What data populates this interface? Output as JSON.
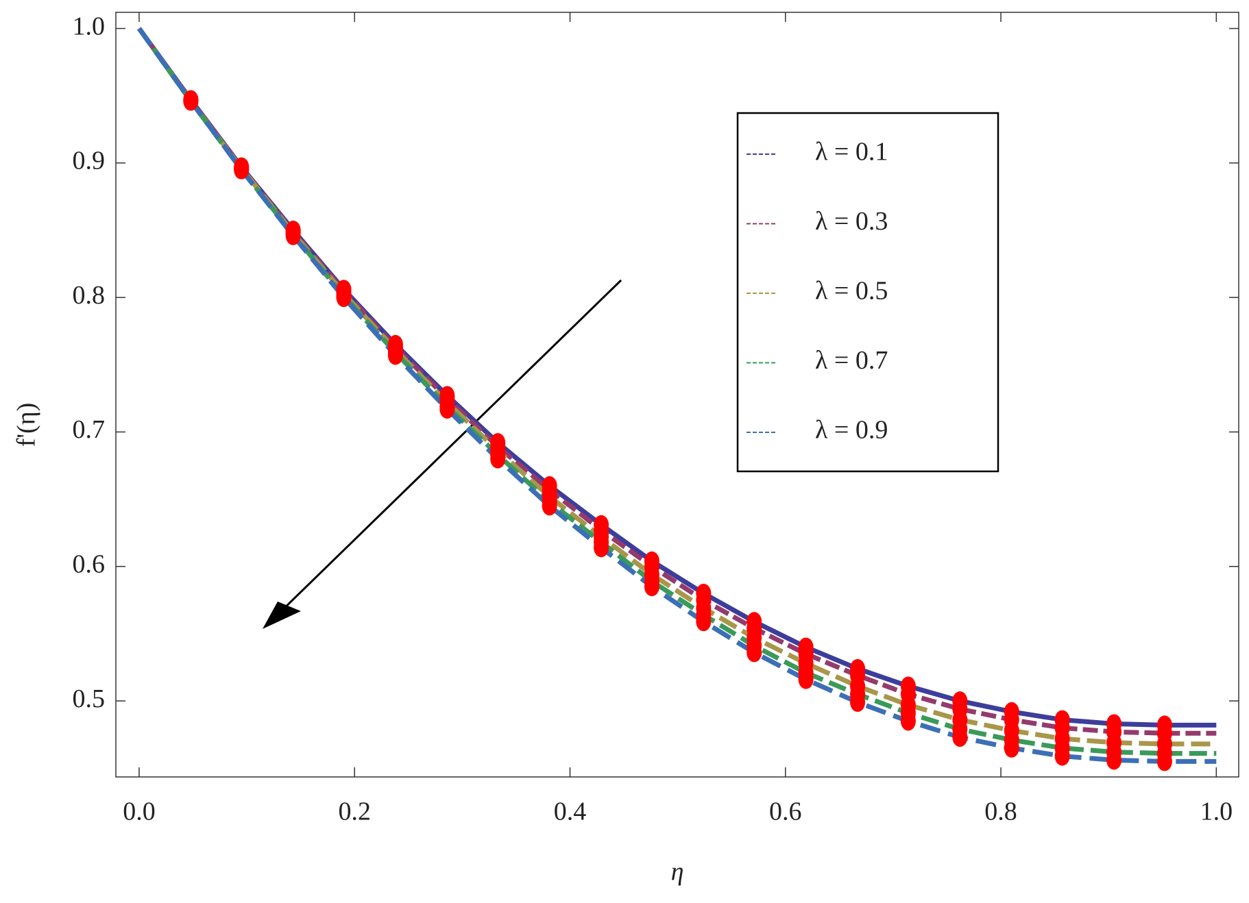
{
  "chart_data": {
    "type": "line",
    "x_label": "η",
    "y_label": "f'(η)",
    "x": [
      0,
      0.048,
      0.095,
      0.143,
      0.19,
      0.238,
      0.286,
      0.333,
      0.381,
      0.429,
      0.476,
      0.524,
      0.571,
      0.619,
      0.667,
      0.714,
      0.762,
      0.81,
      0.857,
      0.905,
      0.952,
      1.0
    ],
    "series": [
      {
        "name": "λ = 0.1",
        "color": "#3d3d9c",
        "values": [
          1.0,
          0.947,
          0.897,
          0.85,
          0.806,
          0.765,
          0.727,
          0.692,
          0.66,
          0.631,
          0.604,
          0.58,
          0.559,
          0.54,
          0.524,
          0.511,
          0.5,
          0.492,
          0.486,
          0.483,
          0.482,
          0.482
        ]
      },
      {
        "name": "λ = 0.3",
        "color": "#943a6d",
        "values": [
          1.0,
          0.947,
          0.897,
          0.849,
          0.805,
          0.763,
          0.725,
          0.689,
          0.657,
          0.627,
          0.6,
          0.575,
          0.554,
          0.535,
          0.519,
          0.505,
          0.494,
          0.486,
          0.48,
          0.477,
          0.476,
          0.476
        ]
      },
      {
        "name": "λ = 0.5",
        "color": "#a8964a",
        "values": [
          1.0,
          0.946,
          0.896,
          0.848,
          0.803,
          0.761,
          0.722,
          0.686,
          0.652,
          0.622,
          0.594,
          0.569,
          0.547,
          0.528,
          0.511,
          0.497,
          0.486,
          0.478,
          0.472,
          0.469,
          0.468,
          0.468
        ]
      },
      {
        "name": "λ = 0.7",
        "color": "#3a9a5a",
        "values": [
          1.0,
          0.946,
          0.895,
          0.847,
          0.801,
          0.759,
          0.719,
          0.683,
          0.648,
          0.618,
          0.589,
          0.564,
          0.541,
          0.521,
          0.505,
          0.491,
          0.479,
          0.471,
          0.465,
          0.462,
          0.461,
          0.461
        ]
      },
      {
        "name": "λ = 0.9",
        "color": "#3b6fb6",
        "values": [
          1.0,
          0.946,
          0.895,
          0.846,
          0.8,
          0.757,
          0.717,
          0.68,
          0.645,
          0.614,
          0.585,
          0.559,
          0.536,
          0.516,
          0.499,
          0.485,
          0.473,
          0.465,
          0.459,
          0.456,
          0.455,
          0.455
        ]
      }
    ],
    "marker_color": "#ff0000",
    "xlim": [
      -0.0216,
      1.0208
    ],
    "ylim": [
      0.4435,
      1.012
    ],
    "xticks": [
      {
        "value": 0,
        "label": "0.0"
      },
      0.2,
      0.4,
      0.6,
      0.8,
      {
        "value": 1,
        "label": "1.0"
      }
    ],
    "yticks": [
      0.5,
      0.6,
      0.7,
      0.8,
      0.9,
      {
        "value": 1,
        "label": "1.0"
      }
    ]
  }
}
